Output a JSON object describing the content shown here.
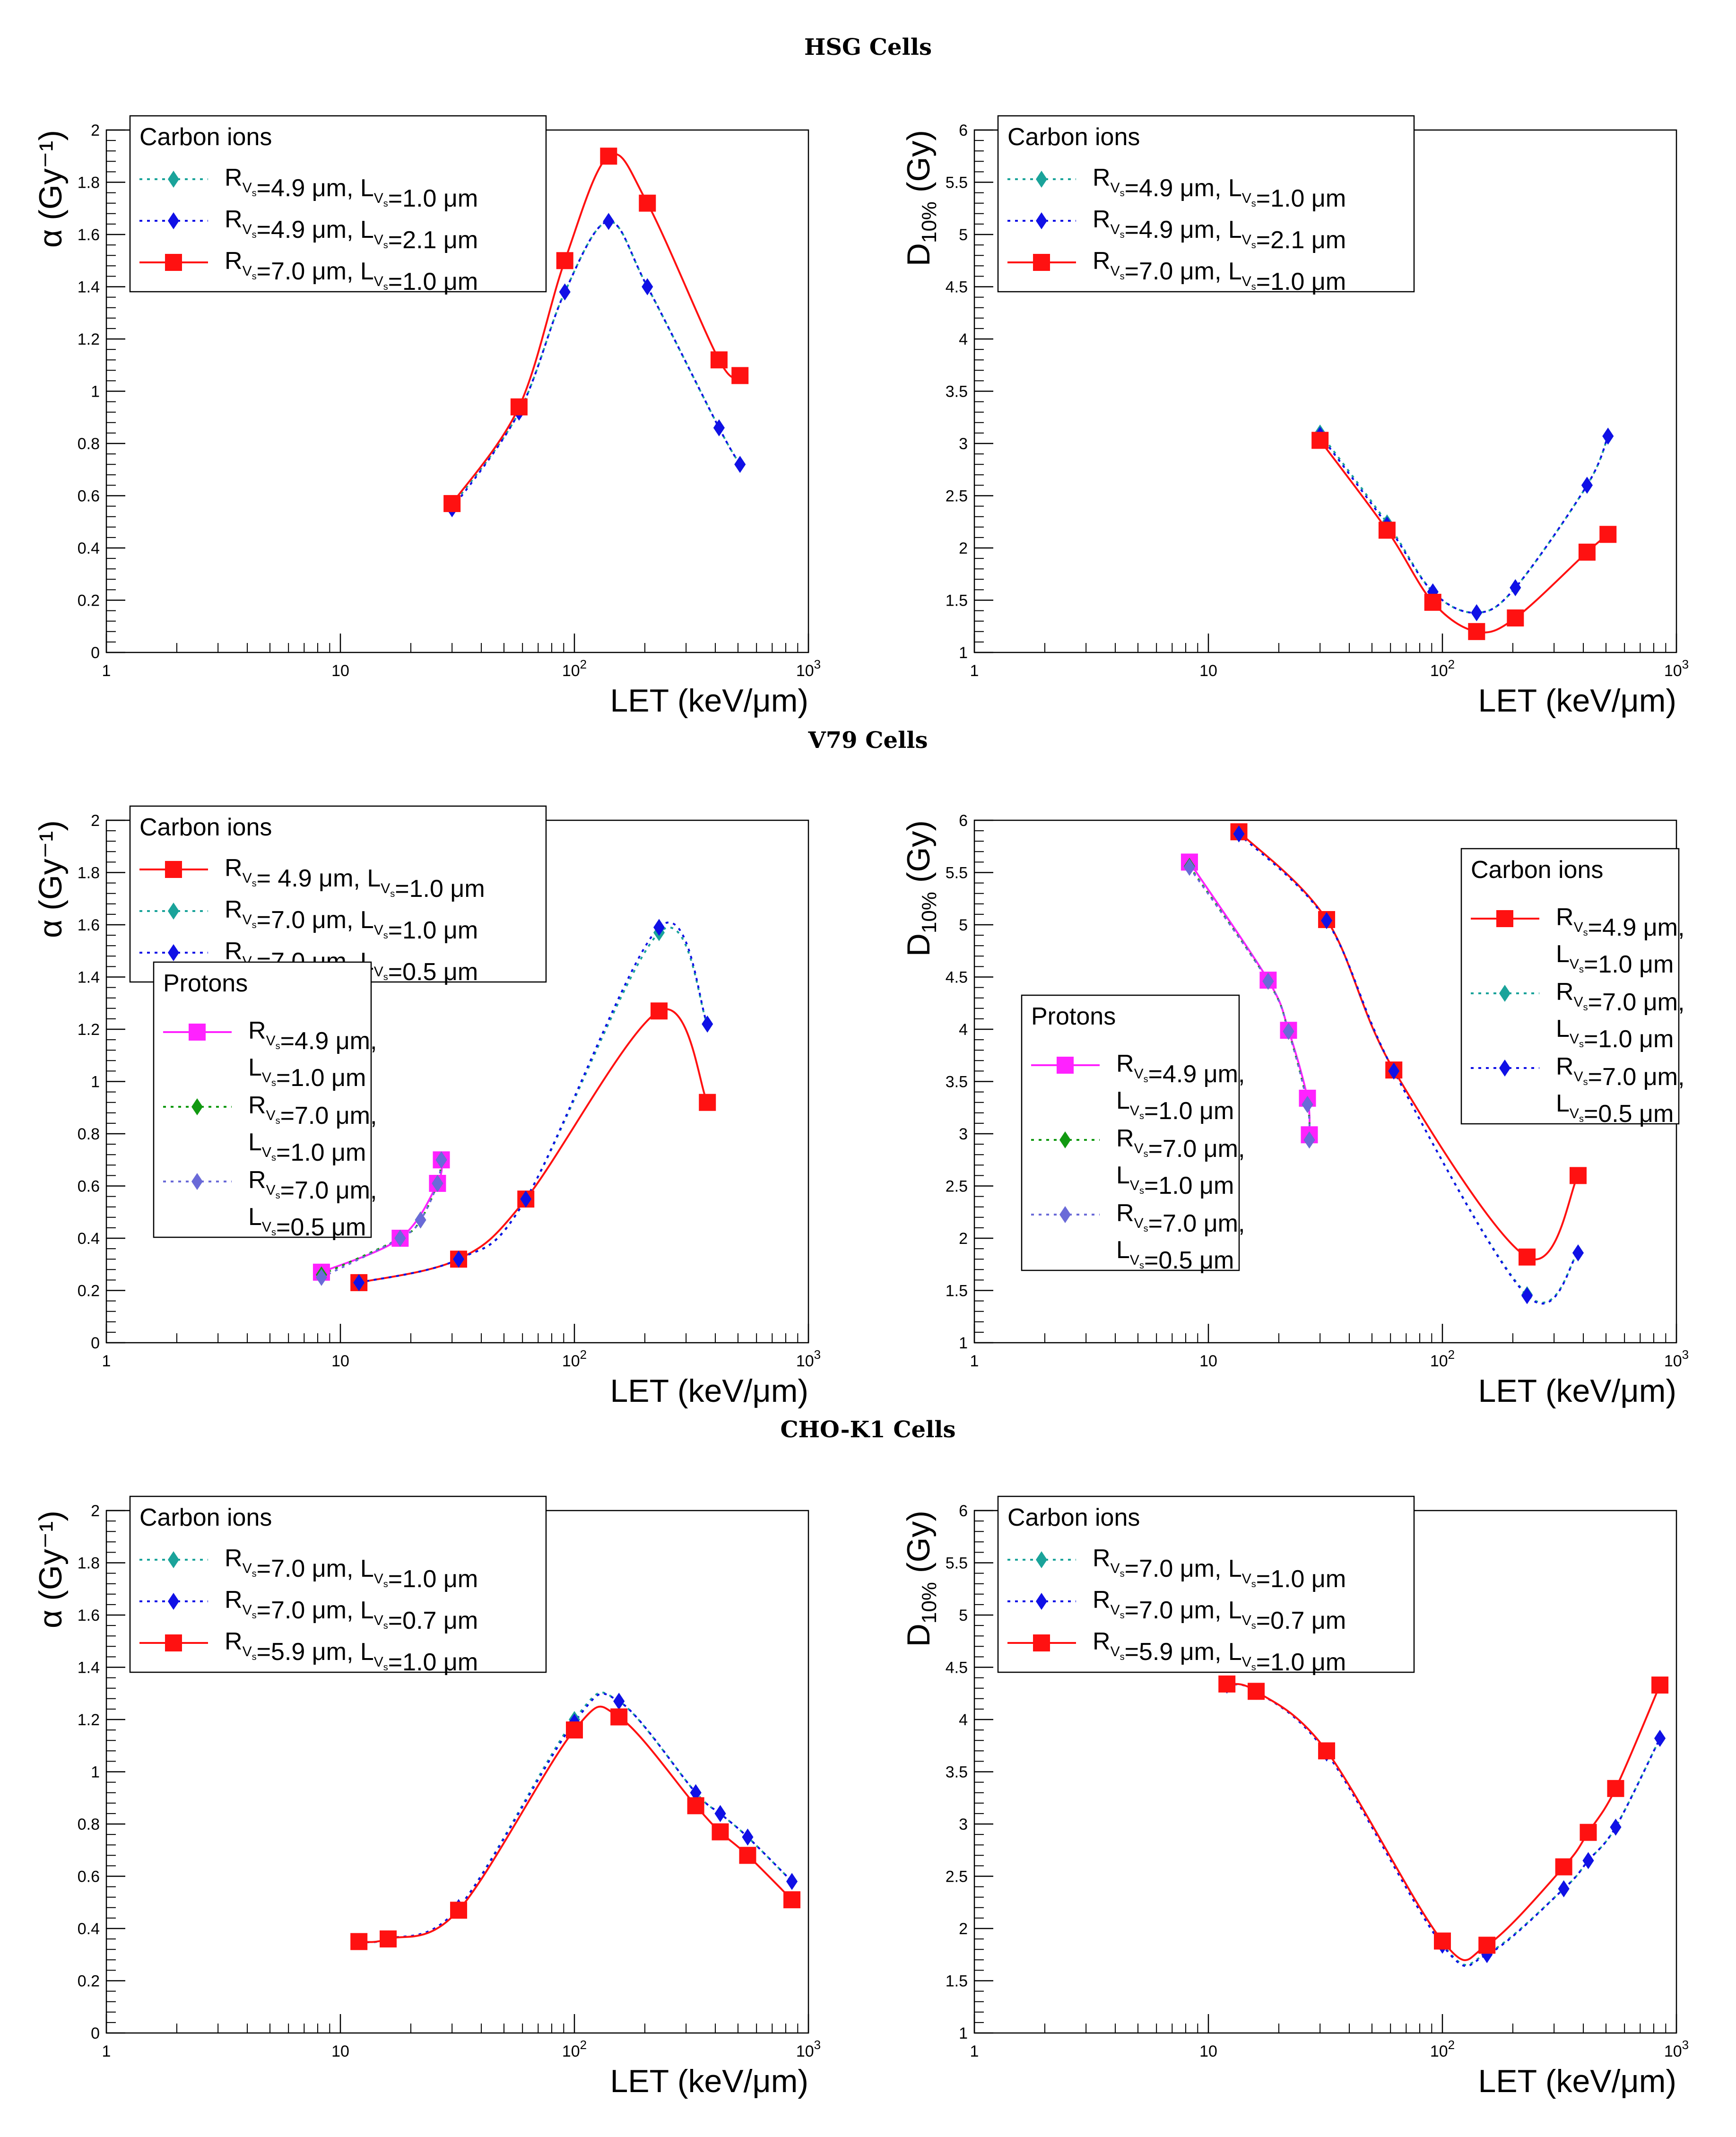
{
  "sections": [
    {
      "title": "HSG Cells"
    },
    {
      "title": "V79 Cells"
    },
    {
      "title": "CHO-K1 Cells"
    }
  ],
  "colors": {
    "red": "#ff1111",
    "blue": "#1010e6",
    "teal": "#1aa39a",
    "magenta": "#ff22ff",
    "green": "#119911",
    "slate": "#6a6ad8"
  },
  "chart_data": [
    {
      "type": "line",
      "section": "HSG Cells",
      "xlabel": "LET (keV/μm)",
      "ylabel": "α (Gy⁻¹)",
      "xscale": "log",
      "xlim": [
        1,
        1000
      ],
      "ylim": [
        0,
        2
      ],
      "yticks": [
        "0",
        "0.2",
        "0.4",
        "0.6",
        "0.8",
        "1",
        "1.2",
        "1.4",
        "1.6",
        "1.8",
        "2"
      ],
      "xticks": [
        {
          "base": "1",
          "exp": ""
        },
        {
          "base": "10",
          "exp": ""
        },
        {
          "base": "10",
          "exp": "2"
        },
        {
          "base": "10",
          "exp": "3"
        }
      ],
      "legends": [
        {
          "title": "Carbon ions",
          "placement": "top-left",
          "entries": [
            {
              "label": "R=4.9 μm, L=1.0 μm",
              "color": "#1aa39a",
              "marker": "diamond",
              "dash": "dotted"
            },
            {
              "label": "R=4.9 μm, L=2.1 μm",
              "color": "#1010e6",
              "marker": "diamond",
              "dash": "dotted"
            },
            {
              "label": "R=7.0 μm, L=1.0 μm",
              "color": "#ff1111",
              "marker": "square",
              "dash": "solid"
            }
          ]
        }
      ],
      "series": [
        {
          "color": "#1aa39a",
          "marker": "diamond",
          "dash": "dotted",
          "x": [
            30,
            58,
            91,
            140,
            205,
            415,
            510
          ],
          "y": [
            0.56,
            0.92,
            1.38,
            1.65,
            1.4,
            0.86,
            0.72
          ]
        },
        {
          "color": "#1010e6",
          "marker": "diamond",
          "dash": "dotted",
          "x": [
            30,
            58,
            91,
            140,
            205,
            415,
            510
          ],
          "y": [
            0.55,
            0.92,
            1.38,
            1.65,
            1.4,
            0.86,
            0.72
          ]
        },
        {
          "color": "#ff1111",
          "marker": "square",
          "dash": "solid",
          "x": [
            30,
            58,
            91,
            140,
            205,
            415,
            510
          ],
          "y": [
            0.57,
            0.94,
            1.5,
            1.9,
            1.72,
            1.12,
            1.06
          ]
        }
      ]
    },
    {
      "type": "line",
      "section": "HSG Cells",
      "xlabel": "LET (keV/μm)",
      "ylabel": "D10% (Gy)",
      "xscale": "log",
      "xlim": [
        1,
        1000
      ],
      "ylim": [
        1,
        6
      ],
      "yticks": [
        "1",
        "1.5",
        "2",
        "2.5",
        "3",
        "3.5",
        "4",
        "4.5",
        "5",
        "5.5",
        "6"
      ],
      "xticks": [
        {
          "base": "1",
          "exp": ""
        },
        {
          "base": "10",
          "exp": ""
        },
        {
          "base": "10",
          "exp": "2"
        },
        {
          "base": "10",
          "exp": "3"
        }
      ],
      "legends": [
        {
          "title": "Carbon ions",
          "placement": "top-left",
          "entries": [
            {
              "label": "R=4.9 μm, L=1.0 μm",
              "color": "#1aa39a",
              "marker": "diamond",
              "dash": "dotted"
            },
            {
              "label": "R=4.9 μm, L=2.1 μm",
              "color": "#1010e6",
              "marker": "diamond",
              "dash": "dotted"
            },
            {
              "label": "R=7.0 μm, L=1.0 μm",
              "color": "#ff1111",
              "marker": "square",
              "dash": "solid"
            }
          ]
        }
      ],
      "series": [
        {
          "color": "#1aa39a",
          "marker": "diamond",
          "dash": "dotted",
          "x": [
            30,
            58,
            91,
            140,
            205,
            415,
            510
          ],
          "y": [
            3.1,
            2.24,
            1.58,
            1.38,
            1.62,
            2.6,
            3.07
          ]
        },
        {
          "color": "#1010e6",
          "marker": "diamond",
          "dash": "dotted",
          "x": [
            30,
            58,
            91,
            140,
            205,
            415,
            510
          ],
          "y": [
            3.08,
            2.22,
            1.58,
            1.38,
            1.62,
            2.6,
            3.07
          ]
        },
        {
          "color": "#ff1111",
          "marker": "square",
          "dash": "solid",
          "x": [
            30,
            58,
            91,
            140,
            205,
            415,
            510
          ],
          "y": [
            3.03,
            2.17,
            1.48,
            1.2,
            1.33,
            1.96,
            2.13
          ]
        }
      ]
    },
    {
      "type": "line",
      "section": "V79 Cells",
      "xlabel": "LET (keV/μm)",
      "ylabel": "α (Gy⁻¹)",
      "xscale": "log",
      "xlim": [
        1,
        1000
      ],
      "ylim": [
        0,
        2
      ],
      "yticks": [
        "0",
        "0.2",
        "0.4",
        "0.6",
        "0.8",
        "1",
        "1.2",
        "1.4",
        "1.6",
        "1.8",
        "2"
      ],
      "xticks": [
        {
          "base": "1",
          "exp": ""
        },
        {
          "base": "10",
          "exp": ""
        },
        {
          "base": "10",
          "exp": "2"
        },
        {
          "base": "10",
          "exp": "3"
        }
      ],
      "legends": [
        {
          "title": "Carbon ions",
          "placement": "top-left",
          "entries": [
            {
              "label": "R= 4.9 μm, L=1.0 μm",
              "color": "#ff1111",
              "marker": "square",
              "dash": "solid"
            },
            {
              "label": "R=7.0 μm, L=1.0 μm",
              "color": "#1aa39a",
              "marker": "diamond",
              "dash": "dotted"
            },
            {
              "label": "R=7.0 μm, L=0.5 μm",
              "color": "#1010e6",
              "marker": "diamond",
              "dash": "dotted"
            }
          ]
        },
        {
          "title": "Protons",
          "placement": "middle-left",
          "entries": [
            {
              "label": "R=4.9 μm,",
              "label2": "L=1.0 μm",
              "color": "#ff22ff",
              "marker": "square",
              "dash": "solid"
            },
            {
              "label": "R=7.0 μm,",
              "label2": "L=1.0 μm",
              "color": "#119911",
              "marker": "diamond",
              "dash": "dotted"
            },
            {
              "label": "R=7.0 μm,",
              "label2": "L=0.5 μm",
              "color": "#6a6ad8",
              "marker": "diamond",
              "dash": "dotted"
            }
          ]
        }
      ],
      "series": [
        {
          "color": "#ff1111",
          "marker": "square",
          "dash": "solid",
          "x": [
            12,
            32,
            62,
            230,
            370
          ],
          "y": [
            0.23,
            0.32,
            0.55,
            1.27,
            0.92
          ]
        },
        {
          "color": "#1aa39a",
          "marker": "diamond",
          "dash": "dotted",
          "x": [
            12,
            32,
            62,
            230,
            370
          ],
          "y": [
            0.23,
            0.32,
            0.55,
            1.57,
            1.22
          ]
        },
        {
          "color": "#1010e6",
          "marker": "diamond",
          "dash": "dotted",
          "x": [
            12,
            32,
            62,
            230,
            370
          ],
          "y": [
            0.23,
            0.32,
            0.55,
            1.59,
            1.22
          ]
        },
        {
          "color": "#ff22ff",
          "marker": "square",
          "dash": "solid",
          "x": [
            8.3,
            18,
            26,
            27
          ],
          "y": [
            0.27,
            0.4,
            0.61,
            0.7
          ]
        },
        {
          "color": "#119911",
          "marker": "diamond",
          "dash": "dotted",
          "x": [
            8.3,
            18,
            22,
            26,
            27
          ],
          "y": [
            0.26,
            0.4,
            0.47,
            0.61,
            0.7
          ]
        },
        {
          "color": "#6a6ad8",
          "marker": "diamond",
          "dash": "dotted",
          "x": [
            8.3,
            18,
            22,
            26,
            27
          ],
          "y": [
            0.25,
            0.4,
            0.47,
            0.61,
            0.7
          ]
        }
      ]
    },
    {
      "type": "line",
      "section": "V79 Cells",
      "xlabel": "LET (keV/μm)",
      "ylabel": "D10% (Gy)",
      "xscale": "log",
      "xlim": [
        1,
        1000
      ],
      "ylim": [
        1,
        6
      ],
      "yticks": [
        "1",
        "1.5",
        "2",
        "2.5",
        "3",
        "3.5",
        "4",
        "4.5",
        "5",
        "5.5",
        "6"
      ],
      "xticks": [
        {
          "base": "1",
          "exp": ""
        },
        {
          "base": "10",
          "exp": ""
        },
        {
          "base": "10",
          "exp": "2"
        },
        {
          "base": "10",
          "exp": "3"
        }
      ],
      "legends": [
        {
          "title": "Carbon ions",
          "placement": "top-right",
          "entries": [
            {
              "label": "R=4.9 μm,",
              "label2": "L=1.0 μm",
              "color": "#ff1111",
              "marker": "square",
              "dash": "solid"
            },
            {
              "label": "R=7.0 μm,",
              "label2": "L=1.0 μm",
              "color": "#1aa39a",
              "marker": "diamond",
              "dash": "dotted"
            },
            {
              "label": "R=7.0 μm,",
              "label2": "L=0.5 μm",
              "color": "#1010e6",
              "marker": "diamond",
              "dash": "dotted"
            }
          ]
        },
        {
          "title": "Protons",
          "placement": "bottom-left",
          "entries": [
            {
              "label": "R=4.9 μm,",
              "label2": "L=1.0 μm",
              "color": "#ff22ff",
              "marker": "square",
              "dash": "solid"
            },
            {
              "label": "R=7.0 μm,",
              "label2": "L=1.0 μm",
              "color": "#119911",
              "marker": "diamond",
              "dash": "dotted"
            },
            {
              "label": "R=7.0 μm,",
              "label2": "L=0.5 μm",
              "color": "#6a6ad8",
              "marker": "diamond",
              "dash": "dotted"
            }
          ]
        }
      ],
      "series": [
        {
          "color": "#ff1111",
          "marker": "square",
          "dash": "solid",
          "x": [
            13.5,
            32,
            62,
            230,
            380
          ],
          "y": [
            5.89,
            5.05,
            3.61,
            1.82,
            2.6
          ]
        },
        {
          "color": "#1aa39a",
          "marker": "diamond",
          "dash": "dotted",
          "x": [
            13.5,
            32,
            62,
            230,
            380
          ],
          "y": [
            5.87,
            5.04,
            3.6,
            1.46,
            1.86
          ]
        },
        {
          "color": "#1010e6",
          "marker": "diamond",
          "dash": "dotted",
          "x": [
            13.5,
            32,
            62,
            230,
            380
          ],
          "y": [
            5.87,
            5.04,
            3.6,
            1.45,
            1.86
          ]
        },
        {
          "color": "#ff22ff",
          "marker": "square",
          "dash": "solid",
          "x": [
            8.3,
            18,
            22,
            26.5,
            27
          ],
          "y": [
            5.6,
            4.47,
            3.99,
            3.34,
            2.99
          ]
        },
        {
          "color": "#119911",
          "marker": "diamond",
          "dash": "dotted",
          "x": [
            8.3,
            18,
            22,
            26.5,
            27
          ],
          "y": [
            5.56,
            4.46,
            3.98,
            3.28,
            2.94
          ]
        },
        {
          "color": "#6a6ad8",
          "marker": "diamond",
          "dash": "dotted",
          "x": [
            8.3,
            18,
            22,
            26.5,
            27
          ],
          "y": [
            5.55,
            4.46,
            3.98,
            3.28,
            2.94
          ]
        }
      ]
    },
    {
      "type": "line",
      "section": "CHO-K1 Cells",
      "xlabel": "LET (keV/μm)",
      "ylabel": "α (Gy⁻¹)",
      "xscale": "log",
      "xlim": [
        1,
        1000
      ],
      "ylim": [
        0,
        2
      ],
      "yticks": [
        "0",
        "0.2",
        "0.4",
        "0.6",
        "0.8",
        "1",
        "1.2",
        "1.4",
        "1.6",
        "1.8",
        "2"
      ],
      "xticks": [
        {
          "base": "1",
          "exp": ""
        },
        {
          "base": "10",
          "exp": ""
        },
        {
          "base": "10",
          "exp": "2"
        },
        {
          "base": "10",
          "exp": "3"
        }
      ],
      "legends": [
        {
          "title": "Carbon ions",
          "placement": "top-left",
          "entries": [
            {
              "label": "R=7.0 μm, L=1.0 μm",
              "color": "#1aa39a",
              "marker": "diamond",
              "dash": "dotted"
            },
            {
              "label": "R=7.0 μm, L=0.7 μm",
              "color": "#1010e6",
              "marker": "diamond",
              "dash": "dotted"
            },
            {
              "label": "R=5.9 μm, L=1.0 μm",
              "color": "#ff1111",
              "marker": "square",
              "dash": "solid"
            }
          ]
        }
      ],
      "series": [
        {
          "color": "#1aa39a",
          "marker": "diamond",
          "dash": "dotted",
          "x": [
            12,
            16,
            32,
            100,
            155,
            330,
            420,
            550,
            850
          ],
          "y": [
            0.35,
            0.36,
            0.48,
            1.2,
            1.27,
            0.92,
            0.84,
            0.75,
            0.58
          ]
        },
        {
          "color": "#1010e6",
          "marker": "diamond",
          "dash": "dotted",
          "x": [
            12,
            16,
            32,
            100,
            155,
            330,
            420,
            550,
            850
          ],
          "y": [
            0.35,
            0.36,
            0.48,
            1.19,
            1.27,
            0.92,
            0.84,
            0.75,
            0.58
          ]
        },
        {
          "color": "#ff1111",
          "marker": "square",
          "dash": "solid",
          "x": [
            12,
            16,
            32,
            100,
            155,
            330,
            420,
            550,
            850
          ],
          "y": [
            0.35,
            0.36,
            0.47,
            1.16,
            1.21,
            0.87,
            0.77,
            0.68,
            0.51
          ]
        }
      ]
    },
    {
      "type": "line",
      "section": "CHO-K1 Cells",
      "xlabel": "LET (keV/μm)",
      "ylabel": "D10% (Gy)",
      "xscale": "log",
      "xlim": [
        1,
        1000
      ],
      "ylim": [
        1,
        6
      ],
      "yticks": [
        "1",
        "1.5",
        "2",
        "2.5",
        "3",
        "3.5",
        "4",
        "4.5",
        "5",
        "5.5",
        "6"
      ],
      "xticks": [
        {
          "base": "1",
          "exp": ""
        },
        {
          "base": "10",
          "exp": ""
        },
        {
          "base": "10",
          "exp": "2"
        },
        {
          "base": "10",
          "exp": "3"
        }
      ],
      "legends": [
        {
          "title": "Carbon ions",
          "placement": "top-left",
          "entries": [
            {
              "label": "R=7.0 μm, L=1.0 μm",
              "color": "#1aa39a",
              "marker": "diamond",
              "dash": "dotted"
            },
            {
              "label": "R=7.0 μm, L=0.7 μm",
              "color": "#1010e6",
              "marker": "diamond",
              "dash": "dotted"
            },
            {
              "label": "R=5.9 μm, L=1.0 μm",
              "color": "#ff1111",
              "marker": "square",
              "dash": "solid"
            }
          ]
        }
      ],
      "series": [
        {
          "color": "#1aa39a",
          "marker": "diamond",
          "dash": "dotted",
          "x": [
            12,
            16,
            32,
            100,
            155,
            330,
            420,
            550,
            850
          ],
          "y": [
            4.33,
            4.27,
            3.68,
            1.85,
            1.76,
            2.38,
            2.65,
            2.97,
            3.82
          ]
        },
        {
          "color": "#1010e6",
          "marker": "diamond",
          "dash": "dotted",
          "x": [
            12,
            16,
            32,
            100,
            155,
            330,
            420,
            550,
            850
          ],
          "y": [
            4.33,
            4.27,
            3.68,
            1.84,
            1.75,
            2.38,
            2.65,
            2.97,
            3.82
          ]
        },
        {
          "color": "#ff1111",
          "marker": "square",
          "dash": "solid",
          "x": [
            12,
            16,
            32,
            100,
            155,
            330,
            420,
            550,
            850
          ],
          "y": [
            4.34,
            4.27,
            3.7,
            1.88,
            1.84,
            2.59,
            2.92,
            3.34,
            4.33
          ]
        }
      ]
    }
  ]
}
